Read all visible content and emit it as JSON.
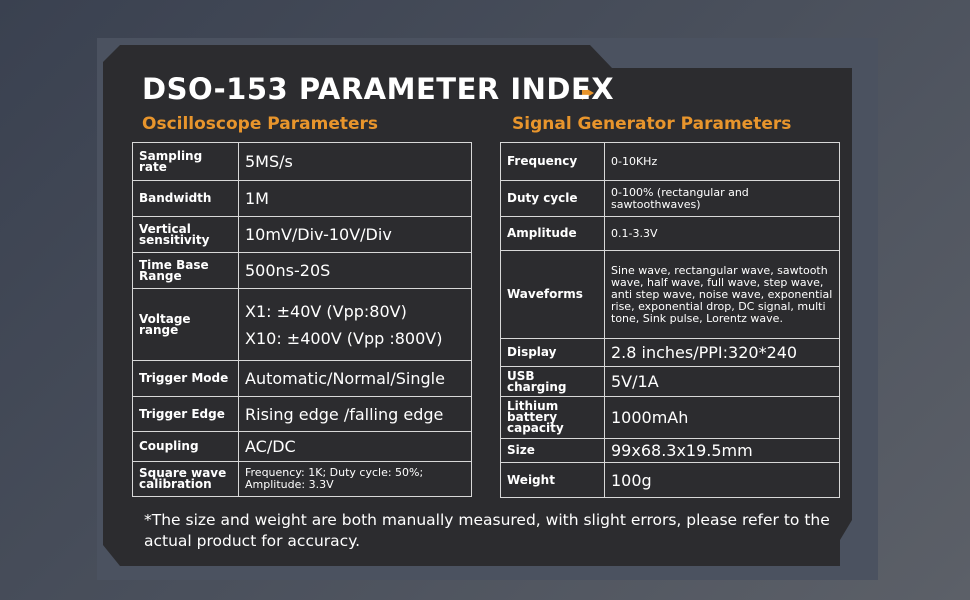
{
  "title": "DSO-153 PARAMETER INDEX",
  "oscilloscope": {
    "heading": "Oscilloscope Parameters",
    "rows": [
      [
        "Sampling rate",
        "5MS/s"
      ],
      [
        "Bandwidth",
        "1M"
      ],
      [
        "Vertical sensitivity",
        "10mV/Div-10V/Div"
      ],
      [
        "Time Base Range",
        "500ns-20S"
      ],
      [
        "Voltage range",
        "X1: ±40V (Vpp:80V)",
        "X10: ±400V (Vpp :800V)"
      ],
      [
        "Trigger Mode",
        "Automatic/Normal/Single"
      ],
      [
        "Trigger Edge",
        "Rising edge /falling edge"
      ],
      [
        "Coupling",
        "AC/DC"
      ],
      [
        "Square wave calibration",
        "Frequency: 1K; Duty cycle: 50%; Amplitude: 3.3V"
      ]
    ]
  },
  "generator": {
    "heading": "Signal Generator Parameters",
    "rows": [
      [
        "Frequency",
        "0-10KHz"
      ],
      [
        "Duty cycle",
        "0-100% (rectangular and sawtoothwaves)"
      ],
      [
        "Amplitude",
        "0.1-3.3V"
      ],
      [
        "Waveforms",
        "Sine wave, rectangular wave, sawtooth wave, half wave, full wave, step wave, anti step wave, noise wave, exponential rise, exponential drop, DC signal, multi tone, Sink pulse, Lorentz wave."
      ],
      [
        "Display",
        "2.8 inches/PPI:320*240"
      ],
      [
        "USB charging",
        "5V/1A"
      ],
      [
        "Lithium battery capacity",
        "1000mAh"
      ],
      [
        "Size",
        "99x68.3x19.5mm"
      ],
      [
        "Weight",
        "100g"
      ]
    ]
  },
  "footnote": "*The size and weight are both manually measured, with slight errors, please refer to the actual product for accuracy."
}
